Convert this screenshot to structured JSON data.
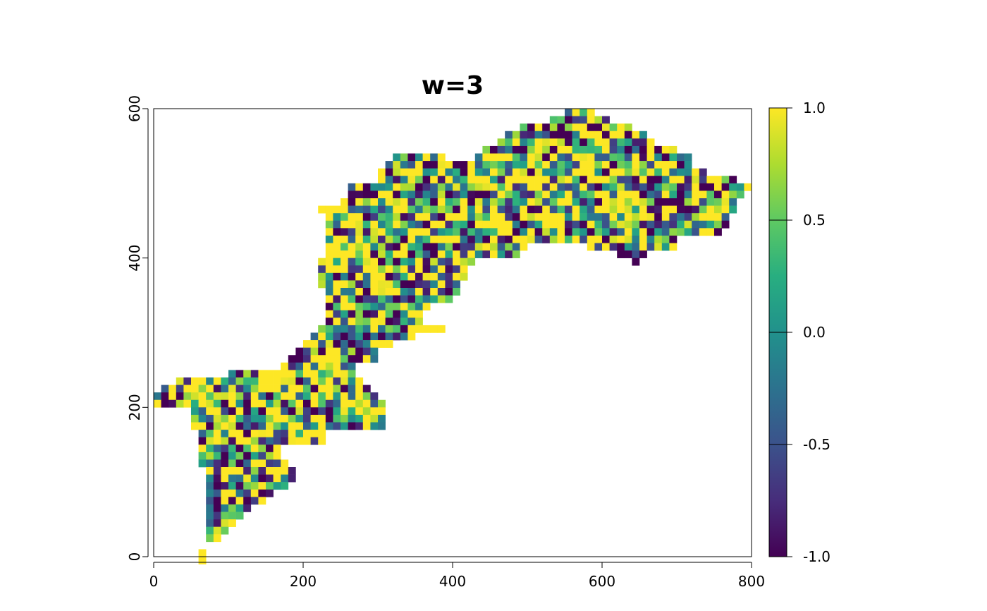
{
  "chart_data": {
    "type": "heatmap",
    "title": "w=3",
    "xlabel": "",
    "ylabel": "",
    "xlim": [
      0,
      800
    ],
    "ylim": [
      0,
      600
    ],
    "x_ticks": [
      0,
      200,
      400,
      600,
      800
    ],
    "y_ticks": [
      0,
      200,
      400,
      600
    ],
    "x_tick_labels": [
      "0",
      "200",
      "400",
      "600",
      "800"
    ],
    "y_tick_labels": [
      "0",
      "200",
      "400",
      "600"
    ],
    "cell_size": 10,
    "colorbar": {
      "range": [
        -1,
        1
      ],
      "ticks": [
        1.0,
        0.5,
        0.0,
        -0.5,
        -1.0
      ],
      "tick_labels": [
        "1.0",
        "0.5",
        "0.0",
        "-0.5",
        "-1.0"
      ],
      "colors": [
        "#440154",
        "#472d7b",
        "#3b528b",
        "#2c728e",
        "#21918c",
        "#28ae80",
        "#5ec962",
        "#addc30",
        "#fde725"
      ]
    },
    "mask_rows": [
      {
        "y": 590,
        "runs": [
          [
            550,
            590
          ]
        ]
      },
      {
        "y": 580,
        "runs": [
          [
            530,
            610
          ]
        ]
      },
      {
        "y": 570,
        "runs": [
          [
            490,
            640
          ]
        ]
      },
      {
        "y": 560,
        "runs": [
          [
            470,
            660
          ]
        ]
      },
      {
        "y": 550,
        "runs": [
          [
            460,
            670
          ]
        ]
      },
      {
        "y": 540,
        "runs": [
          [
            440,
            700
          ]
        ]
      },
      {
        "y": 530,
        "runs": [
          [
            320,
            390
          ],
          [
            430,
            720
          ]
        ]
      },
      {
        "y": 520,
        "runs": [
          [
            310,
            720
          ]
        ]
      },
      {
        "y": 510,
        "runs": [
          [
            300,
            740
          ]
        ]
      },
      {
        "y": 500,
        "runs": [
          [
            300,
            780
          ]
        ]
      },
      {
        "y": 490,
        "runs": [
          [
            260,
            800
          ]
        ]
      },
      {
        "y": 480,
        "runs": [
          [
            260,
            790
          ]
        ]
      },
      {
        "y": 470,
        "runs": [
          [
            250,
            780
          ]
        ]
      },
      {
        "y": 460,
        "runs": [
          [
            220,
            780
          ]
        ]
      },
      {
        "y": 450,
        "runs": [
          [
            230,
            770
          ]
        ]
      },
      {
        "y": 440,
        "runs": [
          [
            230,
            770
          ]
        ]
      },
      {
        "y": 430,
        "runs": [
          [
            230,
            760
          ]
        ]
      },
      {
        "y": 420,
        "runs": [
          [
            230,
            700
          ]
        ]
      },
      {
        "y": 410,
        "runs": [
          [
            230,
            500
          ],
          [
            580,
            700
          ]
        ]
      },
      {
        "y": 400,
        "runs": [
          [
            230,
            490
          ],
          [
            620,
            660
          ]
        ]
      },
      {
        "y": 390,
        "runs": [
          [
            220,
            430
          ],
          [
            640,
            650
          ]
        ]
      },
      {
        "y": 380,
        "runs": [
          [
            220,
            420
          ]
        ]
      },
      {
        "y": 370,
        "runs": [
          [
            220,
            420
          ]
        ]
      },
      {
        "y": 360,
        "runs": [
          [
            220,
            410
          ]
        ]
      },
      {
        "y": 350,
        "runs": [
          [
            230,
            410
          ]
        ]
      },
      {
        "y": 340,
        "runs": [
          [
            230,
            400
          ]
        ]
      },
      {
        "y": 330,
        "runs": [
          [
            230,
            370
          ]
        ]
      },
      {
        "y": 320,
        "runs": [
          [
            230,
            360
          ]
        ]
      },
      {
        "y": 310,
        "runs": [
          [
            230,
            360
          ]
        ]
      },
      {
        "y": 300,
        "runs": [
          [
            220,
            390
          ]
        ]
      },
      {
        "y": 290,
        "runs": [
          [
            210,
            350
          ]
        ]
      },
      {
        "y": 280,
        "runs": [
          [
            200,
            320
          ]
        ]
      },
      {
        "y": 270,
        "runs": [
          [
            190,
            300
          ]
        ]
      },
      {
        "y": 260,
        "runs": [
          [
            180,
            300
          ]
        ]
      },
      {
        "y": 250,
        "runs": [
          [
            170,
            270
          ]
        ]
      },
      {
        "y": 240,
        "runs": [
          [
            100,
            270
          ]
        ]
      },
      {
        "y": 230,
        "runs": [
          [
            30,
            280
          ]
        ]
      },
      {
        "y": 220,
        "runs": [
          [
            10,
            290
          ]
        ]
      },
      {
        "y": 210,
        "runs": [
          [
            0,
            300
          ]
        ]
      },
      {
        "y": 200,
        "runs": [
          [
            0,
            310
          ]
        ]
      },
      {
        "y": 190,
        "runs": [
          [
            50,
            310
          ]
        ]
      },
      {
        "y": 180,
        "runs": [
          [
            50,
            310
          ]
        ]
      },
      {
        "y": 170,
        "runs": [
          [
            50,
            310
          ]
        ]
      },
      {
        "y": 160,
        "runs": [
          [
            60,
            230
          ]
        ]
      },
      {
        "y": 150,
        "runs": [
          [
            60,
            230
          ]
        ]
      },
      {
        "y": 140,
        "runs": [
          [
            60,
            170
          ]
        ]
      },
      {
        "y": 130,
        "runs": [
          [
            60,
            170
          ]
        ]
      },
      {
        "y": 120,
        "runs": [
          [
            60,
            180
          ]
        ]
      },
      {
        "y": 110,
        "runs": [
          [
            70,
            190
          ]
        ]
      },
      {
        "y": 100,
        "runs": [
          [
            70,
            190
          ]
        ]
      },
      {
        "y": 90,
        "runs": [
          [
            70,
            180
          ]
        ]
      },
      {
        "y": 80,
        "runs": [
          [
            70,
            160
          ]
        ]
      },
      {
        "y": 70,
        "runs": [
          [
            70,
            150
          ]
        ]
      },
      {
        "y": 60,
        "runs": [
          [
            70,
            130
          ]
        ]
      },
      {
        "y": 50,
        "runs": [
          [
            70,
            120
          ]
        ]
      },
      {
        "y": 40,
        "runs": [
          [
            70,
            110
          ]
        ]
      },
      {
        "y": 30,
        "runs": [
          [
            70,
            100
          ]
        ]
      },
      {
        "y": 20,
        "runs": [
          [
            70,
            90
          ]
        ]
      },
      {
        "y": 0,
        "runs": [
          [
            60,
            70
          ]
        ]
      },
      {
        "y": -10,
        "runs": [
          [
            60,
            70
          ]
        ]
      }
    ]
  }
}
